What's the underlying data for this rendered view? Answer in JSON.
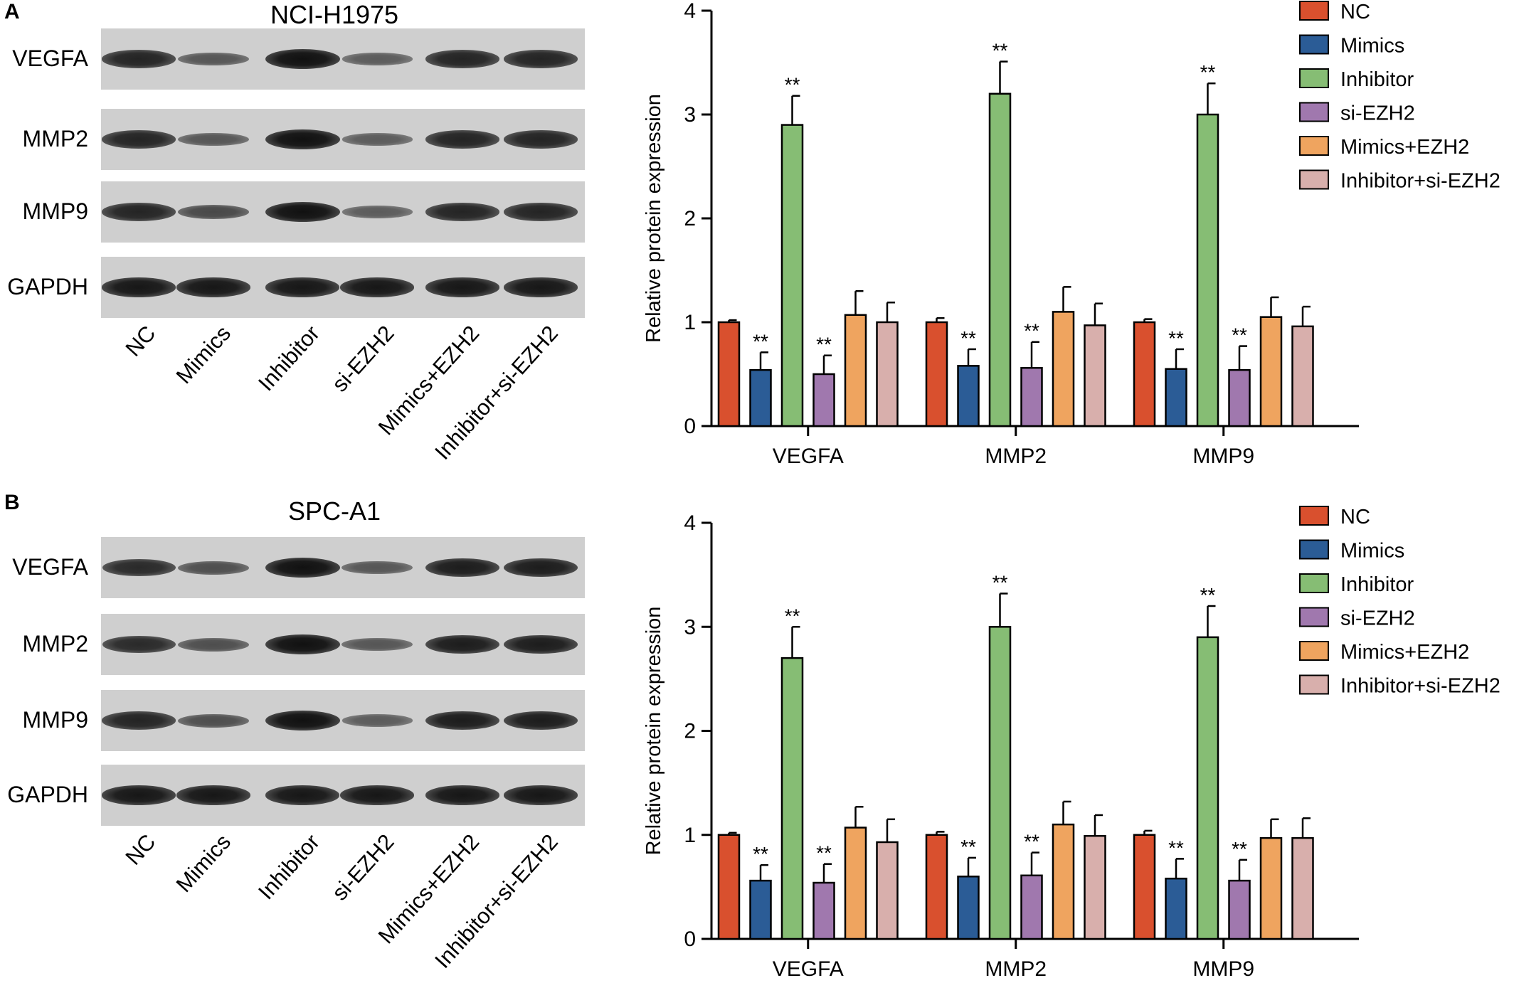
{
  "panels": [
    {
      "letter": "A",
      "cell_line": "NCI-H1975",
      "blot_rows": [
        "VEGFA",
        "MMP2",
        "MMP9",
        "GAPDH"
      ],
      "lanes": [
        "NC",
        "Mimics",
        "Inhibitor",
        "si-EZH2",
        "Mimics+EZH2",
        "Inhibitor+si-EZH2"
      ],
      "band_intensity": {
        "VEGFA": [
          0.85,
          0.45,
          1.0,
          0.4,
          0.85,
          0.85
        ],
        "MMP2": [
          0.85,
          0.45,
          1.0,
          0.4,
          0.85,
          0.85
        ],
        "MMP9": [
          0.85,
          0.55,
          1.0,
          0.4,
          0.85,
          0.85
        ],
        "GAPDH": [
          0.95,
          0.95,
          0.95,
          0.95,
          0.95,
          0.95
        ]
      }
    },
    {
      "letter": "B",
      "cell_line": "SPC-A1",
      "blot_rows": [
        "VEGFA",
        "MMP2",
        "MMP9",
        "GAPDH"
      ],
      "lanes": [
        "NC",
        "Mimics",
        "Inhibitor",
        "si-EZH2",
        "Mimics+EZH2",
        "Inhibitor+si-EZH2"
      ],
      "band_intensity": {
        "VEGFA": [
          0.8,
          0.5,
          1.0,
          0.45,
          0.9,
          0.9
        ],
        "MMP2": [
          0.8,
          0.5,
          1.0,
          0.45,
          0.9,
          0.9
        ],
        "MMP9": [
          0.85,
          0.5,
          1.0,
          0.4,
          0.9,
          0.9
        ],
        "GAPDH": [
          0.95,
          0.95,
          0.95,
          0.95,
          0.95,
          0.95
        ]
      }
    }
  ],
  "colors": {
    "NC": "#d9502e",
    "Mimics": "#2b5c96",
    "Inhibitor": "#86bd74",
    "si-EZH2": "#a078ae",
    "Mimics+EZH2": "#efa45f",
    "Inhibitor+si-EZH2": "#d8afac"
  },
  "chart_data": [
    {
      "type": "bar",
      "categories": [
        "VEGFA",
        "MMP2",
        "MMP9"
      ],
      "ylabel": "Relative protein expression",
      "ylim": [
        0,
        4
      ],
      "yticks": [
        0,
        1,
        2,
        3,
        4
      ],
      "legend": "top-right",
      "series": [
        {
          "name": "NC",
          "values": [
            1.0,
            1.0,
            1.0
          ],
          "errors": [
            0.02,
            0.04,
            0.03
          ],
          "sig": [
            "",
            "",
            ""
          ]
        },
        {
          "name": "Mimics",
          "values": [
            0.54,
            0.58,
            0.55
          ],
          "errors": [
            0.17,
            0.16,
            0.19
          ],
          "sig": [
            "**",
            "**",
            "**"
          ]
        },
        {
          "name": "Inhibitor",
          "values": [
            2.9,
            3.2,
            3.0
          ],
          "errors": [
            0.28,
            0.31,
            0.3
          ],
          "sig": [
            "**",
            "**",
            "**"
          ]
        },
        {
          "name": "si-EZH2",
          "values": [
            0.5,
            0.56,
            0.54
          ],
          "errors": [
            0.18,
            0.25,
            0.23
          ],
          "sig": [
            "**",
            "**",
            "**"
          ]
        },
        {
          "name": "Mimics+EZH2",
          "values": [
            1.07,
            1.1,
            1.05
          ],
          "errors": [
            0.23,
            0.24,
            0.19
          ],
          "sig": [
            "",
            "",
            ""
          ]
        },
        {
          "name": "Inhibitor+si-EZH2",
          "values": [
            1.0,
            0.97,
            0.96
          ],
          "errors": [
            0.19,
            0.21,
            0.19
          ],
          "sig": [
            "",
            "",
            ""
          ]
        }
      ]
    },
    {
      "type": "bar",
      "categories": [
        "VEGFA",
        "MMP2",
        "MMP9"
      ],
      "ylabel": "Relative protein expression",
      "ylim": [
        0,
        4
      ],
      "yticks": [
        0,
        1,
        2,
        3,
        4
      ],
      "legend": "top-right",
      "series": [
        {
          "name": "NC",
          "values": [
            1.0,
            1.0,
            1.0
          ],
          "errors": [
            0.02,
            0.03,
            0.04
          ],
          "sig": [
            "",
            "",
            ""
          ]
        },
        {
          "name": "Mimics",
          "values": [
            0.56,
            0.6,
            0.58
          ],
          "errors": [
            0.15,
            0.18,
            0.19
          ],
          "sig": [
            "**",
            "**",
            "**"
          ]
        },
        {
          "name": "Inhibitor",
          "values": [
            2.7,
            3.0,
            2.9
          ],
          "errors": [
            0.3,
            0.32,
            0.3
          ],
          "sig": [
            "**",
            "**",
            "**"
          ]
        },
        {
          "name": "si-EZH2",
          "values": [
            0.54,
            0.61,
            0.56
          ],
          "errors": [
            0.18,
            0.22,
            0.2
          ],
          "sig": [
            "**",
            "**",
            "**"
          ]
        },
        {
          "name": "Mimics+EZH2",
          "values": [
            1.07,
            1.1,
            0.97
          ],
          "errors": [
            0.2,
            0.22,
            0.18
          ],
          "sig": [
            "",
            "",
            ""
          ]
        },
        {
          "name": "Inhibitor+si-EZH2",
          "values": [
            0.93,
            0.99,
            0.97
          ],
          "errors": [
            0.22,
            0.2,
            0.19
          ],
          "sig": [
            "",
            "",
            ""
          ]
        }
      ]
    }
  ]
}
